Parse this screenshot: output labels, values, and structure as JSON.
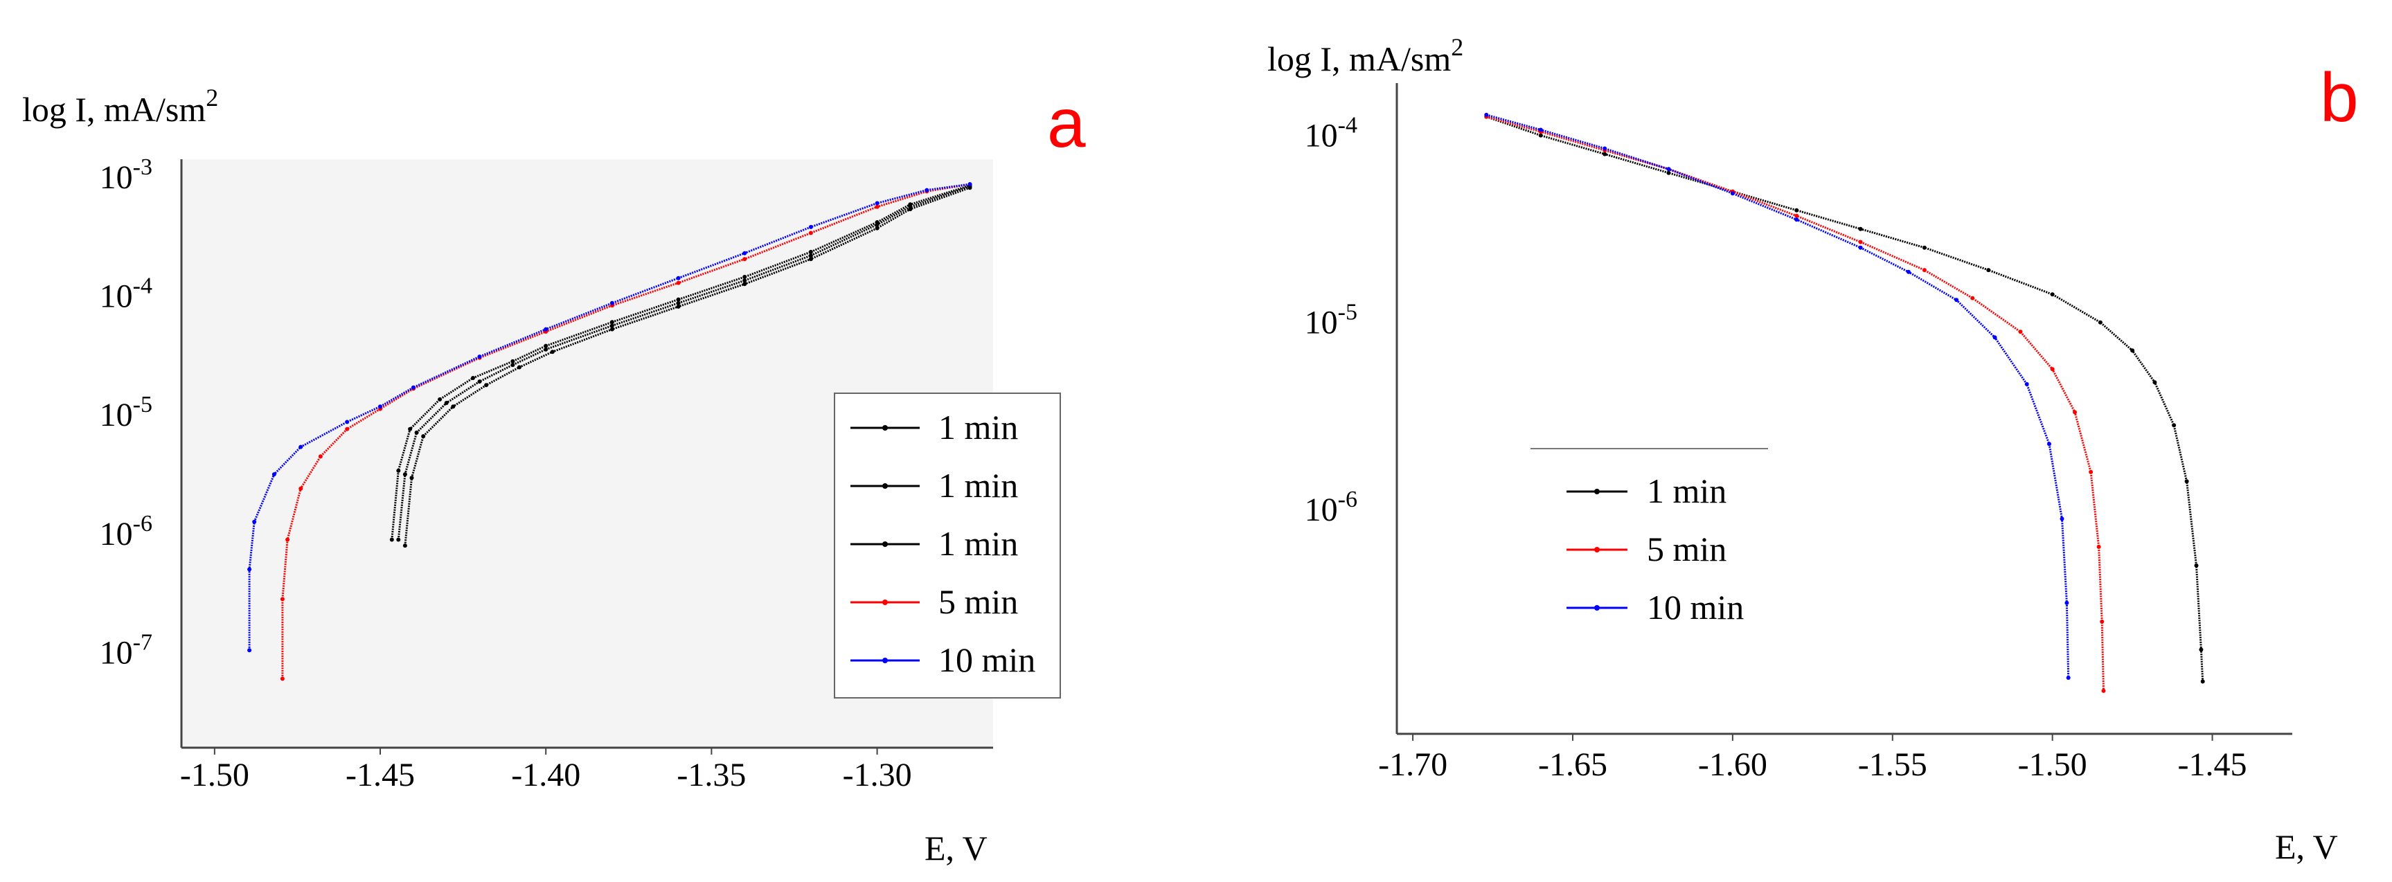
{
  "colors": {
    "background": "#ffffff",
    "axis": "#444444",
    "panel_a_bg": "#f4f4f4",
    "black": "#000000",
    "red": "#ff0000",
    "blue": "#0000ff",
    "panel_label": "#ff0000"
  },
  "chart_data": [
    {
      "type": "line",
      "panel": "a",
      "panel_label": "a",
      "ylabel": "log I, mA/sm",
      "ylabel_sup": "2",
      "xlabel": "E, V",
      "ylog": true,
      "xlim": [
        -1.51,
        -1.265
      ],
      "ylim_log": [
        -7.8,
        -2.85
      ],
      "x_ticks": [
        {
          "value": -1.5,
          "label": "-1.50"
        },
        {
          "value": -1.45,
          "label": "-1.45"
        },
        {
          "value": -1.4,
          "label": "-1.40"
        },
        {
          "value": -1.35,
          "label": "-1.35"
        },
        {
          "value": -1.3,
          "label": "-1.30"
        }
      ],
      "y_ticks": [
        {
          "value": -3,
          "base": "10",
          "exp": "-3"
        },
        {
          "value": -4,
          "base": "10",
          "exp": "-4"
        },
        {
          "value": -5,
          "base": "10",
          "exp": "-5"
        },
        {
          "value": -6,
          "base": "10",
          "exp": "-6"
        },
        {
          "value": -7,
          "base": "10",
          "exp": "-7"
        }
      ],
      "legend_position": "lower-right",
      "series": [
        {
          "name": "1 min",
          "color": "#000000",
          "marker": "dot",
          "points": [
            [
              -1.4445,
              -6.05
            ],
            [
              -1.4425,
              -5.5
            ],
            [
              -1.439,
              -5.15
            ],
            [
              -1.43,
              -4.9
            ],
            [
              -1.42,
              -4.72
            ],
            [
              -1.41,
              -4.58
            ],
            [
              -1.4,
              -4.45
            ],
            [
              -1.38,
              -4.25
            ],
            [
              -1.36,
              -4.06
            ],
            [
              -1.34,
              -3.87
            ],
            [
              -1.32,
              -3.66
            ],
            [
              -1.3,
              -3.4
            ],
            [
              -1.29,
              -3.25
            ],
            [
              -1.272,
              -3.08
            ]
          ]
        },
        {
          "name": "1 min",
          "color": "#000000",
          "marker": "dot",
          "points": [
            [
              -1.4465,
              -6.05
            ],
            [
              -1.4445,
              -5.47
            ],
            [
              -1.441,
              -5.12
            ],
            [
              -1.432,
              -4.87
            ],
            [
              -1.422,
              -4.69
            ],
            [
              -1.41,
              -4.55
            ],
            [
              -1.4,
              -4.42
            ],
            [
              -1.38,
              -4.22
            ],
            [
              -1.36,
              -4.03
            ],
            [
              -1.34,
              -3.84
            ],
            [
              -1.32,
              -3.63
            ],
            [
              -1.3,
              -3.38
            ],
            [
              -1.29,
              -3.23
            ],
            [
              -1.272,
              -3.07
            ]
          ]
        },
        {
          "name": "1 min",
          "color": "#000000",
          "marker": "triangle",
          "points": [
            [
              -1.4425,
              -6.1
            ],
            [
              -1.4405,
              -5.53
            ],
            [
              -1.437,
              -5.18
            ],
            [
              -1.428,
              -4.93
            ],
            [
              -1.418,
              -4.75
            ],
            [
              -1.408,
              -4.6
            ],
            [
              -1.398,
              -4.47
            ],
            [
              -1.38,
              -4.28
            ],
            [
              -1.36,
              -4.09
            ],
            [
              -1.34,
              -3.9
            ],
            [
              -1.32,
              -3.69
            ],
            [
              -1.3,
              -3.43
            ],
            [
              -1.29,
              -3.27
            ],
            [
              -1.272,
              -3.09
            ]
          ]
        },
        {
          "name": "5 min",
          "color": "#ff0000",
          "marker": "dot",
          "points": [
            [
              -1.4795,
              -7.22
            ],
            [
              -1.4795,
              -6.55
            ],
            [
              -1.478,
              -6.05
            ],
            [
              -1.474,
              -5.62
            ],
            [
              -1.468,
              -5.35
            ],
            [
              -1.46,
              -5.12
            ],
            [
              -1.45,
              -4.95
            ],
            [
              -1.44,
              -4.78
            ],
            [
              -1.42,
              -4.52
            ],
            [
              -1.4,
              -4.3
            ],
            [
              -1.38,
              -4.08
            ],
            [
              -1.36,
              -3.89
            ],
            [
              -1.34,
              -3.69
            ],
            [
              -1.32,
              -3.47
            ],
            [
              -1.3,
              -3.25
            ],
            [
              -1.285,
              -3.12
            ],
            [
              -1.272,
              -3.06
            ]
          ]
        },
        {
          "name": "10 min",
          "color": "#0000ff",
          "marker": "triangle",
          "points": [
            [
              -1.4895,
              -6.98
            ],
            [
              -1.4895,
              -6.3
            ],
            [
              -1.488,
              -5.9
            ],
            [
              -1.482,
              -5.5
            ],
            [
              -1.474,
              -5.27
            ],
            [
              -1.46,
              -5.06
            ],
            [
              -1.45,
              -4.93
            ],
            [
              -1.44,
              -4.77
            ],
            [
              -1.42,
              -4.51
            ],
            [
              -1.4,
              -4.28
            ],
            [
              -1.38,
              -4.06
            ],
            [
              -1.36,
              -3.85
            ],
            [
              -1.34,
              -3.64
            ],
            [
              -1.32,
              -3.42
            ],
            [
              -1.3,
              -3.22
            ],
            [
              -1.285,
              -3.11
            ],
            [
              -1.272,
              -3.06
            ]
          ]
        }
      ]
    },
    {
      "type": "line",
      "panel": "b",
      "panel_label": "b",
      "ylabel": "log I, mA/sm",
      "ylabel_sup": "2",
      "xlabel": "E, V",
      "ylog": true,
      "xlim": [
        -1.705,
        -1.425
      ],
      "ylim_log": [
        -7.2,
        -3.72
      ],
      "x_ticks": [
        {
          "value": -1.7,
          "label": "-1.70"
        },
        {
          "value": -1.65,
          "label": "-1.65"
        },
        {
          "value": -1.6,
          "label": "-1.60"
        },
        {
          "value": -1.55,
          "label": "-1.55"
        },
        {
          "value": -1.5,
          "label": "-1.50"
        },
        {
          "value": -1.45,
          "label": "-1.45"
        }
      ],
      "y_ticks": [
        {
          "value": -4,
          "base": "10",
          "exp": "-4"
        },
        {
          "value": -5,
          "base": "10",
          "exp": "-5"
        },
        {
          "value": -6,
          "base": "10",
          "exp": "-6"
        }
      ],
      "legend_position": "lower-left",
      "series": [
        {
          "name": "1 min",
          "color": "#000000",
          "marker": "dot",
          "points": [
            [
              -1.677,
              -3.9
            ],
            [
              -1.66,
              -4.0
            ],
            [
              -1.64,
              -4.1
            ],
            [
              -1.62,
              -4.2
            ],
            [
              -1.6,
              -4.3
            ],
            [
              -1.58,
              -4.4
            ],
            [
              -1.56,
              -4.5
            ],
            [
              -1.54,
              -4.6
            ],
            [
              -1.52,
              -4.72
            ],
            [
              -1.5,
              -4.85
            ],
            [
              -1.485,
              -5.0
            ],
            [
              -1.475,
              -5.15
            ],
            [
              -1.468,
              -5.32
            ],
            [
              -1.462,
              -5.55
            ],
            [
              -1.458,
              -5.85
            ],
            [
              -1.455,
              -6.3
            ],
            [
              -1.4535,
              -6.75
            ],
            [
              -1.453,
              -6.92
            ]
          ]
        },
        {
          "name": "5 min",
          "color": "#ff0000",
          "marker": "dot",
          "points": [
            [
              -1.677,
              -3.9
            ],
            [
              -1.66,
              -3.98
            ],
            [
              -1.64,
              -4.08
            ],
            [
              -1.62,
              -4.18
            ],
            [
              -1.6,
              -4.3
            ],
            [
              -1.58,
              -4.43
            ],
            [
              -1.56,
              -4.57
            ],
            [
              -1.54,
              -4.72
            ],
            [
              -1.525,
              -4.87
            ],
            [
              -1.51,
              -5.05
            ],
            [
              -1.5,
              -5.25
            ],
            [
              -1.493,
              -5.48
            ],
            [
              -1.488,
              -5.8
            ],
            [
              -1.4855,
              -6.2
            ],
            [
              -1.4845,
              -6.6
            ],
            [
              -1.484,
              -6.97
            ]
          ]
        },
        {
          "name": "10 min",
          "color": "#0000ff",
          "marker": "triangle",
          "points": [
            [
              -1.677,
              -3.89
            ],
            [
              -1.66,
              -3.97
            ],
            [
              -1.64,
              -4.07
            ],
            [
              -1.62,
              -4.18
            ],
            [
              -1.6,
              -4.31
            ],
            [
              -1.58,
              -4.45
            ],
            [
              -1.56,
              -4.6
            ],
            [
              -1.545,
              -4.73
            ],
            [
              -1.53,
              -4.88
            ],
            [
              -1.518,
              -5.08
            ],
            [
              -1.508,
              -5.33
            ],
            [
              -1.501,
              -5.65
            ],
            [
              -1.497,
              -6.05
            ],
            [
              -1.4955,
              -6.5
            ],
            [
              -1.495,
              -6.9
            ]
          ]
        }
      ]
    }
  ]
}
